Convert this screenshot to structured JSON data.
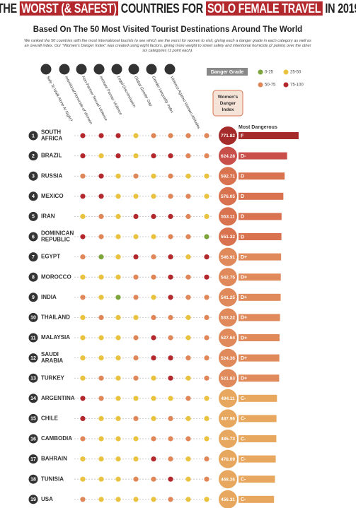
{
  "header": {
    "title_parts": [
      "The",
      "Worst (& Safest)",
      "Countries for",
      "Solo Female Travel",
      "In 2019"
    ],
    "subtitle": "Based On The 50 Most Visited Tourist Destinations Around The World",
    "intro": "We ranked the 50 countries with the most international tourists to see which are the worst for women to visit, giving each a danger grade in each category as well as an overall index. Our \"Women's Danger Index\" was created using eight factors, giving more weight to street safety and intentional homicide (2 points) over the other six categories (1 point each)."
  },
  "legend": {
    "title": "Danger Grade",
    "items": [
      {
        "label": "0-25",
        "color": "#7da53c"
      },
      {
        "label": "25-50",
        "color": "#e9c33f"
      },
      {
        "label": "50-75",
        "color": "#e0875a"
      },
      {
        "label": "75-100",
        "color": "#b3282d"
      }
    ]
  },
  "columns": [
    "Safe To Walk Alone At Night?",
    "Intentional Homicide of Women",
    "Non-Partner Sexual Violence",
    "Intimate Partner Violence",
    "Legal Discrimination",
    "Global Gender Gap",
    "Gender Inequality Index",
    "Violence Against Women Attitudes"
  ],
  "index_header": "Women's Danger Index",
  "most_dangerous": "Most Dangerous",
  "rows": [
    {
      "rank": 1,
      "country": [
        "SOUTH",
        "AFRICA"
      ],
      "dots": [
        "#b3282d",
        "#b3282d",
        "#b3282d",
        "#e9c33f",
        "#e0875a",
        "#e0875a",
        "#e0875a",
        "#e0875a"
      ],
      "index": 771.82,
      "grade": "F",
      "color": "#a52a2a"
    },
    {
      "rank": 2,
      "country": [
        "BRAZIL"
      ],
      "dots": [
        "#b3282d",
        "#e9c33f",
        "#b3282d",
        "#e9c33f",
        "#b3282d",
        "#b3282d",
        "#e0875a",
        "#e0875a"
      ],
      "index": 624.28,
      "grade": "D-",
      "color": "#c9504a"
    },
    {
      "rank": 3,
      "country": [
        "RUSSIA"
      ],
      "dots": [
        "#e0875a",
        "#b3282d",
        "#e9c33f",
        "#e0875a",
        "#e9c33f",
        "#e0875a",
        "#e9c33f",
        "#e9c33f"
      ],
      "index": 592.71,
      "grade": "D",
      "color": "#d9734f"
    },
    {
      "rank": 4,
      "country": [
        "MEXICO"
      ],
      "dots": [
        "#b3282d",
        "#b3282d",
        "#e9c33f",
        "#e9c33f",
        "#e9c33f",
        "#e0875a",
        "#e0875a",
        "#e9c33f"
      ],
      "index": 576.05,
      "grade": "D",
      "color": "#d9734f"
    },
    {
      "rank": 5,
      "country": [
        "IRAN"
      ],
      "dots": [
        "#e9c33f",
        "#e0875a",
        "#e9c33f",
        "#b3282d",
        "#b3282d",
        "#b3282d",
        "#e0875a",
        "#e9c33f"
      ],
      "index": 553.11,
      "grade": "D",
      "color": "#d9734f"
    },
    {
      "rank": 6,
      "country": [
        "DOMINICAN",
        "REPUBLIC"
      ],
      "dots": [
        "#b3282d",
        "#e0875a",
        "#e9c33f",
        "#e9c33f",
        "#e9c33f",
        "#e0875a",
        "#e0875a",
        "#7da53c"
      ],
      "index": 551.32,
      "grade": "D",
      "color": "#d9734f"
    },
    {
      "rank": 7,
      "country": [
        "EGYPT"
      ],
      "dots": [
        "#e0875a",
        "#7da53c",
        "#e9c33f",
        "#b3282d",
        "#e0875a",
        "#b3282d",
        "#e9c33f",
        "#b3282d"
      ],
      "index": 546.91,
      "grade": "D+",
      "color": "#e0895a"
    },
    {
      "rank": 8,
      "country": [
        "MOROCCO"
      ],
      "dots": [
        "#e9c33f",
        "#e9c33f",
        "#e9c33f",
        "#e0875a",
        "#e0875a",
        "#b3282d",
        "#e0875a",
        "#b3282d"
      ],
      "index": 542.75,
      "grade": "D+",
      "color": "#e0895a"
    },
    {
      "rank": 9,
      "country": [
        "INDIA"
      ],
      "dots": [
        "#e0875a",
        "#e9c33f",
        "#7da53c",
        "#e0875a",
        "#e9c33f",
        "#b3282d",
        "#e0875a",
        "#e0875a"
      ],
      "index": 541.25,
      "grade": "D+",
      "color": "#e0895a"
    },
    {
      "rank": 10,
      "country": [
        "THAILAND"
      ],
      "dots": [
        "#e9c33f",
        "#e0875a",
        "#e9c33f",
        "#e9c33f",
        "#e0875a",
        "#e0875a",
        "#e9c33f",
        "#e0875a"
      ],
      "index": 533.22,
      "grade": "D+",
      "color": "#e0895a"
    },
    {
      "rank": 11,
      "country": [
        "MALAYSIA"
      ],
      "dots": [
        "#e9c33f",
        "#e9c33f",
        "#e9c33f",
        "#e0875a",
        "#b3282d",
        "#e0875a",
        "#e9c33f",
        "#e0875a"
      ],
      "index": 527.64,
      "grade": "D+",
      "color": "#e0895a"
    },
    {
      "rank": 12,
      "country": [
        "SAUDI",
        "ARABIA"
      ],
      "dots": [
        "#e9c33f",
        "#e9c33f",
        "#e9c33f",
        "#e0875a",
        "#b3282d",
        "#b3282d",
        "#e0875a",
        "#e0875a"
      ],
      "index": 524.36,
      "grade": "D+",
      "color": "#e0895a"
    },
    {
      "rank": 13,
      "country": [
        "TURKEY"
      ],
      "dots": [
        "#e9c33f",
        "#e0875a",
        "#e9c33f",
        "#e0875a",
        "#e9c33f",
        "#b3282d",
        "#e9c33f",
        "#e0875a"
      ],
      "index": 521.83,
      "grade": "D+",
      "color": "#e0895a"
    },
    {
      "rank": 14,
      "country": [
        "ARGENTINA"
      ],
      "dots": [
        "#b3282d",
        "#e0875a",
        "#e9c33f",
        "#e9c33f",
        "#e9c33f",
        "#e9c33f",
        "#e0875a",
        "#e9c33f"
      ],
      "index": 494.11,
      "grade": "C-",
      "color": "#e8a75e"
    },
    {
      "rank": 15,
      "country": [
        "CHILE"
      ],
      "dots": [
        "#b3282d",
        "#e9c33f",
        "#e9c33f",
        "#e0875a",
        "#e9c33f",
        "#e0875a",
        "#e9c33f",
        "#e9c33f"
      ],
      "index": 487.96,
      "grade": "C-",
      "color": "#e8a75e"
    },
    {
      "rank": 16,
      "country": [
        "CAMBODIA"
      ],
      "dots": [
        "#e0875a",
        "#e9c33f",
        "#e9c33f",
        "#e9c33f",
        "#e0875a",
        "#e0875a",
        "#e0875a",
        "#e9c33f"
      ],
      "index": 485.73,
      "grade": "C-",
      "color": "#e8a75e"
    },
    {
      "rank": 17,
      "country": [
        "BAHRAIN"
      ],
      "dots": [
        "#e9c33f",
        "#e9c33f",
        "#e9c33f",
        "#e9c33f",
        "#b3282d",
        "#e0875a",
        "#e9c33f",
        "#e0875a"
      ],
      "index": 478.09,
      "grade": "C-",
      "color": "#e8a75e"
    },
    {
      "rank": 18,
      "country": [
        "TUNISIA"
      ],
      "dots": [
        "#e9c33f",
        "#e9c33f",
        "#e9c33f",
        "#e0875a",
        "#e0875a",
        "#b3282d",
        "#e9c33f",
        "#e0875a"
      ],
      "index": 468.26,
      "grade": "C-",
      "color": "#e8a75e"
    },
    {
      "rank": 19,
      "country": [
        "USA"
      ],
      "dots": [
        "#e0875a",
        "#e9c33f",
        "#e9c33f",
        "#e9c33f",
        "#e9c33f",
        "#e0875a",
        "#e9c33f",
        "#e9c33f"
      ],
      "index": 456.31,
      "grade": "C-",
      "color": "#e8a75e"
    }
  ]
}
